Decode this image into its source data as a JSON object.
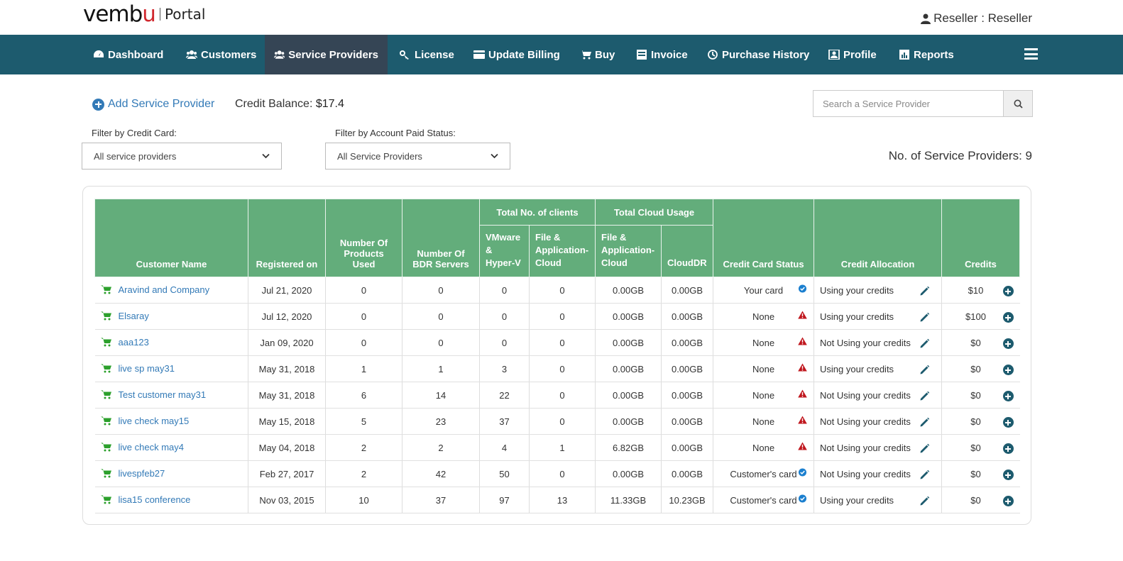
{
  "header": {
    "logo_text": "vembu",
    "portal_label": "Portal",
    "user_label": "Reseller : Reseller"
  },
  "nav": {
    "items": [
      {
        "label": "Dashboard",
        "icon": "dashboard-icon"
      },
      {
        "label": "Customers",
        "icon": "users-icon"
      },
      {
        "label": "Service Providers",
        "icon": "users-icon",
        "active": true
      },
      {
        "label": "License",
        "icon": "key-icon"
      },
      {
        "label": "Update Billing",
        "icon": "credit-card-icon"
      },
      {
        "label": "Buy",
        "icon": "cart-icon"
      },
      {
        "label": "Invoice",
        "icon": "invoice-icon"
      },
      {
        "label": "Purchase History",
        "icon": "history-icon"
      },
      {
        "label": "Profile",
        "icon": "profile-icon"
      },
      {
        "label": "Reports",
        "icon": "reports-icon"
      }
    ]
  },
  "toolbar": {
    "add_label": "Add Service Provider",
    "credit_label": "Credit Balance:",
    "credit_value": "$17.4",
    "search_placeholder": "Search a Service Provider"
  },
  "filters": {
    "credit_card_label": "Filter by Credit Card:",
    "credit_card_value": "All service providers",
    "paid_status_label": "Filter by Account Paid Status:",
    "paid_status_value": "All Service Providers"
  },
  "count": {
    "label": "No. of Service Providers:",
    "value": "9"
  },
  "table": {
    "headers": {
      "customer_name": "Customer Name",
      "registered_on": "Registered on",
      "products_used": "Number Of Products Used",
      "bdr_servers": "Number Of BDR Servers",
      "total_clients": "Total No. of clients",
      "vmware": "VMware & Hyper-V",
      "file_app": "File & Application-Cloud",
      "total_cloud": "Total Cloud Usage",
      "cloud_file_app": "File & Application-Cloud",
      "clouddr": "CloudDR",
      "cc_status": "Credit Card Status",
      "credit_alloc": "Credit Allocation",
      "credits": "Credits"
    },
    "rows": [
      {
        "name": "Aravind and Company",
        "registered": "Jul 21, 2020",
        "products": "0",
        "bdr": "0",
        "vmware": "0",
        "fileapp": "0",
        "cloud_fileapp": "0.00GB",
        "clouddr": "0.00GB",
        "cc_status": "Your card",
        "cc_ok": true,
        "alloc": "Using your credits",
        "credits": "$10"
      },
      {
        "name": "Elsaray",
        "registered": "Jul 12, 2020",
        "products": "0",
        "bdr": "0",
        "vmware": "0",
        "fileapp": "0",
        "cloud_fileapp": "0.00GB",
        "clouddr": "0.00GB",
        "cc_status": "None",
        "cc_ok": false,
        "alloc": "Using your credits",
        "credits": "$100"
      },
      {
        "name": "aaa123",
        "registered": "Jan 09, 2020",
        "products": "0",
        "bdr": "0",
        "vmware": "0",
        "fileapp": "0",
        "cloud_fileapp": "0.00GB",
        "clouddr": "0.00GB",
        "cc_status": "None",
        "cc_ok": false,
        "alloc": "Not Using your credits",
        "credits": "$0"
      },
      {
        "name": "live sp may31",
        "registered": "May 31, 2018",
        "products": "1",
        "bdr": "1",
        "vmware": "3",
        "fileapp": "0",
        "cloud_fileapp": "0.00GB",
        "clouddr": "0.00GB",
        "cc_status": "None",
        "cc_ok": false,
        "alloc": "Using your credits",
        "credits": "$0"
      },
      {
        "name": "Test customer may31",
        "registered": "May 31, 2018",
        "products": "6",
        "bdr": "14",
        "vmware": "22",
        "fileapp": "0",
        "cloud_fileapp": "0.00GB",
        "clouddr": "0.00GB",
        "cc_status": "None",
        "cc_ok": false,
        "alloc": "Not Using your credits",
        "credits": "$0"
      },
      {
        "name": "live check may15",
        "registered": "May 15, 2018",
        "products": "5",
        "bdr": "23",
        "vmware": "37",
        "fileapp": "0",
        "cloud_fileapp": "0.00GB",
        "clouddr": "0.00GB",
        "cc_status": "None",
        "cc_ok": false,
        "alloc": "Not Using your credits",
        "credits": "$0"
      },
      {
        "name": "live check may4",
        "registered": "May 04, 2018",
        "products": "2",
        "bdr": "2",
        "vmware": "4",
        "fileapp": "1",
        "cloud_fileapp": "6.82GB",
        "clouddr": "0.00GB",
        "cc_status": "None",
        "cc_ok": false,
        "alloc": "Not Using your credits",
        "credits": "$0"
      },
      {
        "name": "livespfeb27",
        "registered": "Feb 27, 2017",
        "products": "2",
        "bdr": "42",
        "vmware": "50",
        "fileapp": "0",
        "cloud_fileapp": "0.00GB",
        "clouddr": "0.00GB",
        "cc_status": "Customer's card",
        "cc_ok": true,
        "alloc": "Not Using your credits",
        "credits": "$0"
      },
      {
        "name": "lisa15 conference",
        "registered": "Nov 03, 2015",
        "products": "10",
        "bdr": "37",
        "vmware": "97",
        "fileapp": "13",
        "cloud_fileapp": "11.33GB",
        "clouddr": "10.23GB",
        "cc_status": "Customer's card",
        "cc_ok": true,
        "alloc": "Using your credits",
        "credits": "$0"
      }
    ]
  },
  "colors": {
    "nav_bg": "#1d5b6e",
    "nav_active": "#354555",
    "table_header": "#63ad7b",
    "link": "#337ab7",
    "cart_green": "#2ca02c",
    "warning_red": "#c0171e",
    "ok_blue": "#1b7fcf"
  }
}
